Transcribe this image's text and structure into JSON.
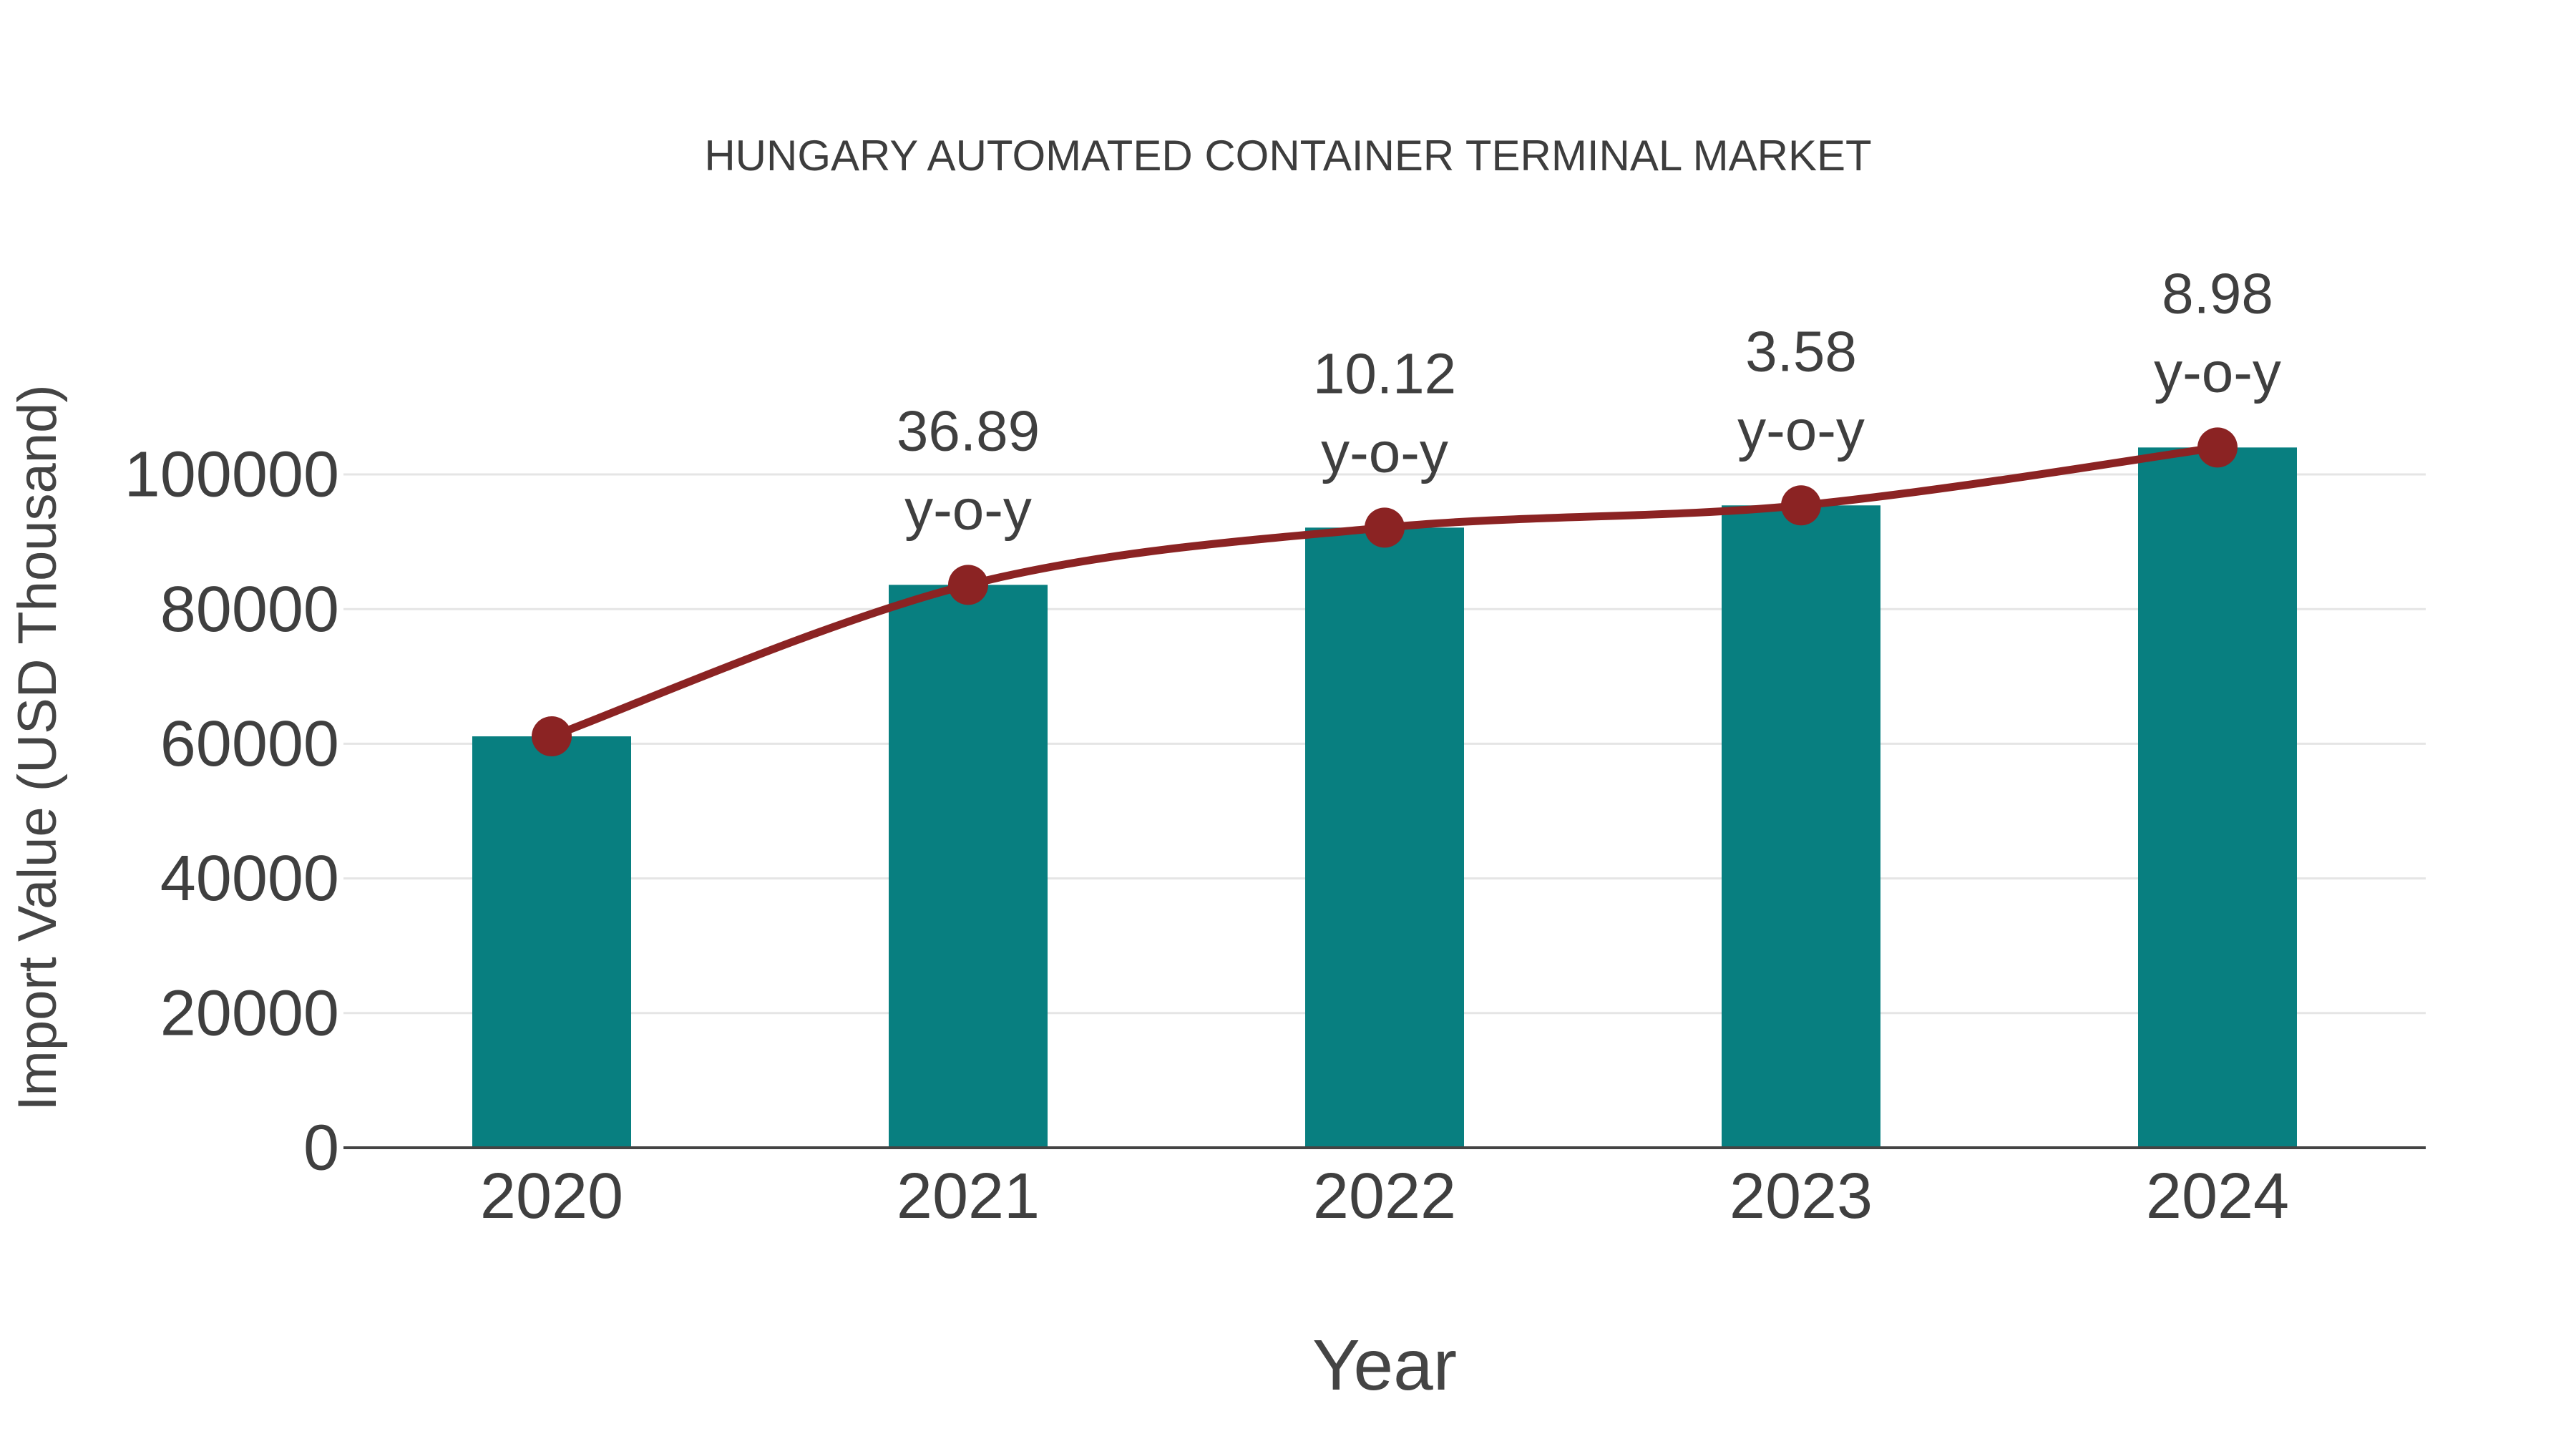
{
  "title": "HUNGARY AUTOMATED CONTAINER TERMINAL MARKET",
  "chart_data": {
    "type": "bar",
    "title": "HUNGARY AUTOMATED CONTAINER TERMINAL MARKET",
    "xlabel": "Year",
    "ylabel": "Import Value (USD Thousand)",
    "categories": [
      "2020",
      "2021",
      "2022",
      "2023",
      "2024"
    ],
    "series": [
      {
        "name": "Import Value (USD Thousand)",
        "kind": "bar",
        "values": [
          61100,
          83600,
          92100,
          95400,
          104000
        ]
      },
      {
        "name": "y-o-y growth",
        "kind": "line",
        "values": [
          61100,
          83600,
          92100,
          95400,
          104000
        ],
        "growth_percent": [
          null,
          36.89,
          10.12,
          3.58,
          8.98
        ]
      }
    ],
    "annotations": [
      {
        "category": "2021",
        "value": "36.89",
        "suffix": "y-o-y"
      },
      {
        "category": "2022",
        "value": "10.12",
        "suffix": "y-o-y"
      },
      {
        "category": "2023",
        "value": "3.58",
        "suffix": "y-o-y"
      },
      {
        "category": "2024",
        "value": "8.98",
        "suffix": "y-o-y"
      }
    ],
    "ylim": [
      0,
      110000
    ],
    "yticks": [
      0,
      20000,
      40000,
      60000,
      80000,
      100000
    ],
    "grid": "horizontal-light",
    "legend": "none",
    "colors": {
      "bar": "#087F80",
      "line": "#8B2323",
      "marker": "#8B2323",
      "text": "#3F3F3F",
      "axis": "#444444",
      "grid": "#E5E5E5",
      "background": "#FFFFFF"
    }
  }
}
